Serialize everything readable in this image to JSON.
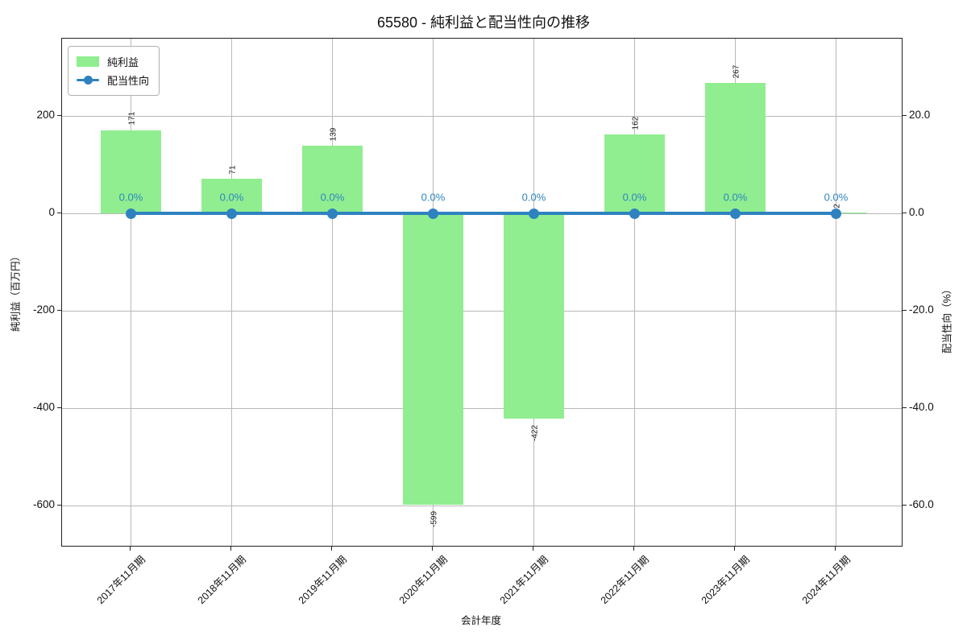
{
  "title": "65580 - 純利益と配当性向の推移",
  "colors": {
    "bar": "#90ee90",
    "line": "#2e82c0",
    "point_label": "#2e86c1",
    "grid": "#b8b8b8",
    "spine": "#222222"
  },
  "chart_data": {
    "type": "bar",
    "title": "65580 - 純利益と配当性向の推移",
    "categories": [
      "2017年11月期",
      "2018年11月期",
      "2019年11月期",
      "2020年11月期",
      "2021年11月期",
      "2022年11月期",
      "2023年11月期",
      "2024年11月期"
    ],
    "series": [
      {
        "name": "純利益",
        "type": "bar",
        "axis": "left",
        "color": "#90ee90",
        "values": [
          171,
          71,
          139,
          -599,
          -422,
          162,
          267,
          2
        ],
        "labels": [
          "171",
          "71",
          "139",
          "-599",
          "-422",
          "162",
          "267",
          "2"
        ]
      },
      {
        "name": "配当性向",
        "type": "line",
        "axis": "right",
        "color": "#2e82c0",
        "values": [
          0.0,
          0.0,
          0.0,
          0.0,
          0.0,
          0.0,
          0.0,
          0.0
        ],
        "labels": [
          "0.0%",
          "0.0%",
          "0.0%",
          "0.0%",
          "0.0%",
          "0.0%",
          "0.0%",
          "0.0%"
        ]
      }
    ],
    "xlabel": "会計年度",
    "ylabel_left": "純利益（百万円）",
    "ylabel_right": "配当性向（%）",
    "yticks_left": {
      "values": [
        200,
        0,
        -200,
        -400,
        -600
      ],
      "labels": [
        "200",
        "0",
        "-200",
        "-400",
        "-600"
      ]
    },
    "yticks_right": {
      "labels": [
        "20.0",
        "0.0",
        "-20.0",
        "-40.0",
        "-60.0"
      ]
    },
    "ylim_left": [
      -683,
      359
    ],
    "ylim_right": [
      -68.3,
      35.9
    ],
    "grid": true,
    "legend_position": "upper left"
  }
}
